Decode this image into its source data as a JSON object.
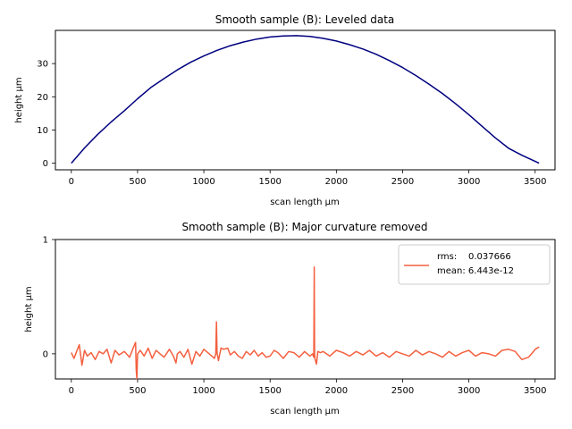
{
  "chart_data": [
    {
      "type": "line",
      "title": "Smooth sample (B): Leveled data",
      "xlabel": "scan length µm",
      "ylabel": "height µm",
      "xlim": [
        -120,
        3650
      ],
      "ylim": [
        -2,
        40
      ],
      "xticks": [
        0,
        500,
        1000,
        1500,
        2000,
        2500,
        3000,
        3500
      ],
      "yticks": [
        0,
        10,
        20,
        30
      ],
      "series": [
        {
          "color": "#00007f",
          "x": [
            0,
            100,
            200,
            300,
            400,
            500,
            600,
            700,
            800,
            900,
            1000,
            1100,
            1200,
            1300,
            1400,
            1500,
            1600,
            1700,
            1800,
            1900,
            2000,
            2100,
            2200,
            2300,
            2400,
            2500,
            2600,
            2700,
            2800,
            2900,
            3000,
            3100,
            3200,
            3300,
            3400,
            3530
          ],
          "y": [
            0,
            4.6,
            8.7,
            12.4,
            15.8,
            19.4,
            22.8,
            25.5,
            28.1,
            30.4,
            32.3,
            34.0,
            35.4,
            36.5,
            37.4,
            38.0,
            38.3,
            38.4,
            38.2,
            37.6,
            36.8,
            35.7,
            34.4,
            32.8,
            30.9,
            28.8,
            26.4,
            23.8,
            21.0,
            17.9,
            14.6,
            11.1,
            7.6,
            4.5,
            2.4,
            0
          ]
        }
      ]
    },
    {
      "type": "line",
      "title": "Smooth sample (B): Major curvature removed",
      "xlabel": "scan length µm",
      "ylabel": "height µm",
      "xlim": [
        -120,
        3650
      ],
      "ylim": [
        -0.22,
        1.0
      ],
      "xticks": [
        0,
        500,
        1000,
        1500,
        2000,
        2500,
        3000,
        3500
      ],
      "yticks": [
        0,
        1
      ],
      "legend_position": "upper-right",
      "legend_lines": [
        "rms:    0.037666",
        "mean: 6.443e-12"
      ],
      "series": [
        {
          "color": "#f4603f",
          "x": [
            0,
            20,
            40,
            60,
            80,
            100,
            120,
            150,
            180,
            210,
            240,
            270,
            300,
            330,
            360,
            400,
            440,
            470,
            485,
            490,
            495,
            500,
            520,
            550,
            580,
            610,
            640,
            670,
            700,
            740,
            770,
            790,
            800,
            820,
            850,
            880,
            910,
            940,
            970,
            1000,
            1030,
            1060,
            1080,
            1090,
            1095,
            1100,
            1105,
            1110,
            1130,
            1150,
            1180,
            1200,
            1230,
            1260,
            1290,
            1320,
            1350,
            1380,
            1410,
            1440,
            1470,
            1500,
            1530,
            1560,
            1600,
            1640,
            1680,
            1720,
            1760,
            1800,
            1820,
            1830,
            1833,
            1836,
            1840,
            1850,
            1860,
            1880,
            1900,
            1950,
            2000,
            2050,
            2100,
            2150,
            2200,
            2250,
            2300,
            2350,
            2400,
            2450,
            2500,
            2550,
            2600,
            2650,
            2700,
            2750,
            2800,
            2850,
            2900,
            2950,
            3000,
            3050,
            3100,
            3150,
            3200,
            3250,
            3300,
            3350,
            3400,
            3450,
            3480,
            3500,
            3530
          ],
          "y": [
            0.01,
            -0.04,
            0.02,
            0.08,
            -0.1,
            0.03,
            -0.02,
            0.01,
            -0.05,
            0.02,
            0.0,
            0.04,
            -0.08,
            0.03,
            -0.01,
            0.02,
            -0.03,
            0.06,
            0.1,
            -0.14,
            -0.22,
            0.0,
            0.03,
            -0.02,
            0.05,
            -0.04,
            0.03,
            0.0,
            -0.03,
            0.04,
            -0.02,
            -0.08,
            0.0,
            0.02,
            -0.03,
            0.04,
            -0.09,
            0.02,
            -0.02,
            0.04,
            0.01,
            -0.02,
            -0.04,
            0.0,
            0.28,
            0.0,
            -0.02,
            -0.06,
            0.05,
            0.04,
            0.05,
            -0.01,
            0.02,
            -0.02,
            -0.04,
            0.02,
            -0.01,
            0.03,
            -0.02,
            0.01,
            -0.03,
            -0.02,
            0.03,
            0.01,
            -0.04,
            0.02,
            0.01,
            -0.03,
            0.02,
            -0.02,
            0.0,
            -0.03,
            0.76,
            0.0,
            -0.05,
            -0.09,
            0.02,
            0.01,
            0.02,
            -0.02,
            0.03,
            0.01,
            -0.02,
            0.02,
            -0.01,
            0.03,
            -0.02,
            0.01,
            -0.03,
            0.02,
            0.0,
            -0.02,
            0.03,
            -0.01,
            0.02,
            0.0,
            -0.03,
            0.02,
            -0.02,
            0.01,
            0.03,
            -0.02,
            0.01,
            0.0,
            -0.02,
            0.03,
            0.04,
            0.02,
            -0.05,
            -0.03,
            0.01,
            0.04,
            0.06
          ]
        }
      ]
    }
  ]
}
